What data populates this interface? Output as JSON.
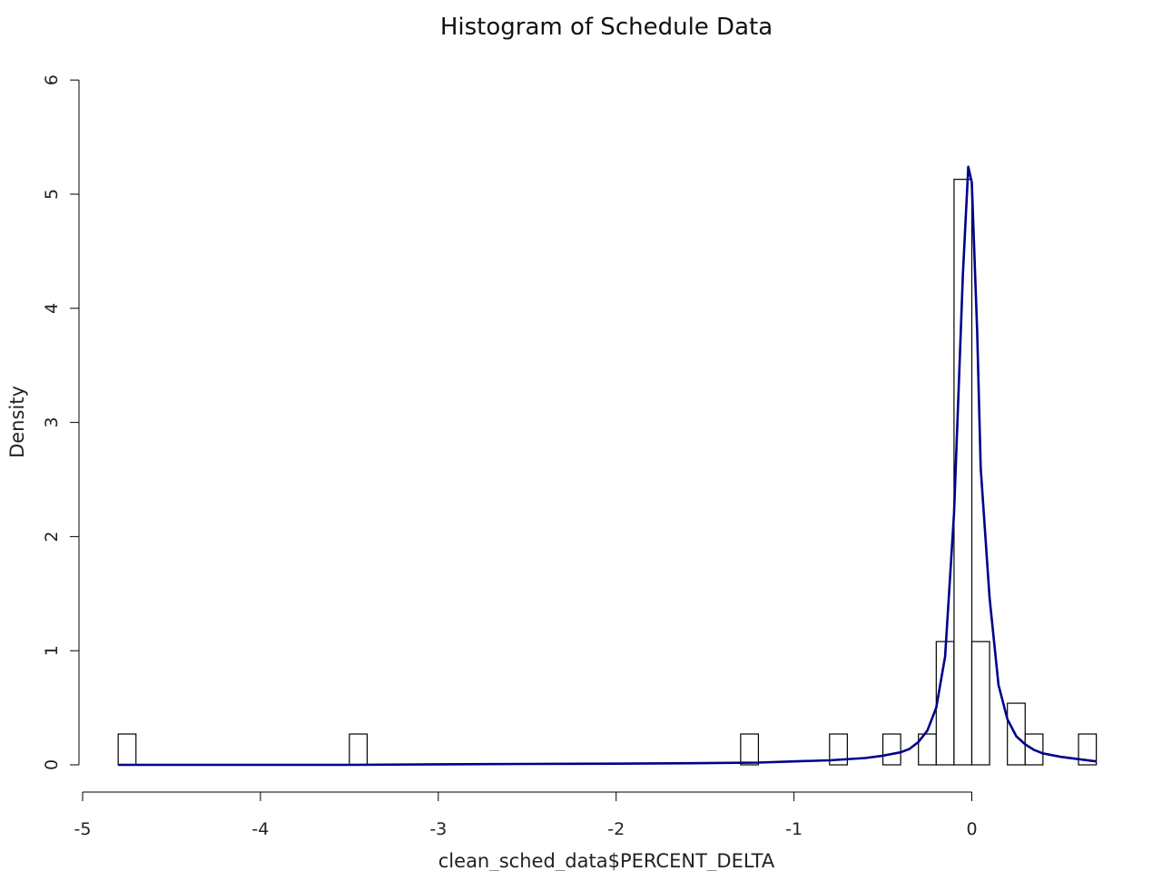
{
  "chart_data": {
    "type": "bar",
    "subtype": "histogram",
    "title": "Histogram of Schedule Data",
    "xlabel": "clean_sched_data$PERCENT_DELTA",
    "ylabel": "Density",
    "xlim": [
      -5,
      0.7
    ],
    "ylim": [
      0,
      6
    ],
    "x_ticks": [
      -5,
      -4,
      -3,
      -2,
      -1,
      0
    ],
    "y_ticks": [
      0,
      1,
      2,
      3,
      4,
      5,
      6
    ],
    "grid": false,
    "bins": [
      {
        "x0": -4.8,
        "x1": -4.7,
        "density": 0.27
      },
      {
        "x0": -3.5,
        "x1": -3.4,
        "density": 0.27
      },
      {
        "x0": -1.3,
        "x1": -1.2,
        "density": 0.27
      },
      {
        "x0": -0.8,
        "x1": -0.7,
        "density": 0.27
      },
      {
        "x0": -0.5,
        "x1": -0.4,
        "density": 0.27
      },
      {
        "x0": -0.3,
        "x1": -0.2,
        "density": 0.27
      },
      {
        "x0": -0.2,
        "x1": -0.1,
        "density": 1.08
      },
      {
        "x0": -0.1,
        "x1": 0.0,
        "density": 5.13
      },
      {
        "x0": 0.0,
        "x1": 0.1,
        "density": 1.08
      },
      {
        "x0": 0.2,
        "x1": 0.3,
        "density": 0.54
      },
      {
        "x0": 0.3,
        "x1": 0.4,
        "density": 0.27
      },
      {
        "x0": 0.6,
        "x1": 0.7,
        "density": 0.27
      }
    ],
    "series": [
      {
        "type": "line",
        "color": "#00008b",
        "x": [
          -4.8,
          -4.5,
          -4.0,
          -3.5,
          -3.0,
          -2.5,
          -2.0,
          -1.5,
          -1.2,
          -1.0,
          -0.8,
          -0.6,
          -0.5,
          -0.4,
          -0.35,
          -0.3,
          -0.25,
          -0.2,
          -0.15,
          -0.1,
          -0.05,
          -0.02,
          0.0,
          0.03,
          0.05,
          0.1,
          0.15,
          0.2,
          0.25,
          0.3,
          0.35,
          0.4,
          0.5,
          0.6,
          0.7
        ],
        "y": [
          0.0,
          0.0,
          0.0,
          0.0,
          0.005,
          0.008,
          0.01,
          0.015,
          0.02,
          0.03,
          0.04,
          0.06,
          0.08,
          0.11,
          0.14,
          0.2,
          0.3,
          0.5,
          0.95,
          2.2,
          4.3,
          5.24,
          5.1,
          3.8,
          2.6,
          1.46,
          0.7,
          0.4,
          0.25,
          0.18,
          0.13,
          0.1,
          0.07,
          0.05,
          0.03
        ]
      }
    ]
  }
}
